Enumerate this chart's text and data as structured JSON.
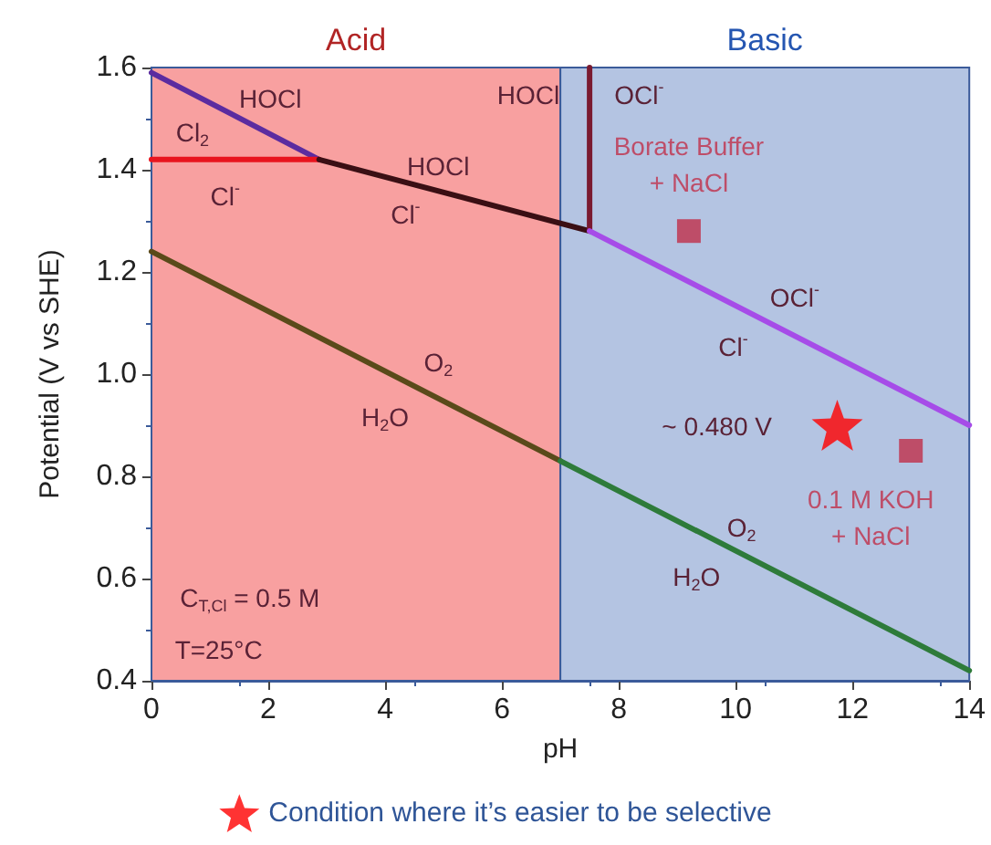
{
  "chart_data": {
    "type": "line",
    "xlabel": "pH",
    "ylabel": "Potential (V vs SHE)",
    "xlim": [
      0,
      14
    ],
    "xticks": [
      0,
      2,
      4,
      6,
      8,
      10,
      12,
      14
    ],
    "ylim": [
      0.4,
      1.6
    ],
    "yticks": [
      {
        "value": 0.4,
        "label": "0.4"
      },
      {
        "value": 0.6,
        "label": "0.6"
      },
      {
        "value": 0.8,
        "label": "0.8"
      },
      {
        "value": 1.0,
        "label": "1.0"
      },
      {
        "value": 1.2,
        "label": "1.2"
      },
      {
        "value": 1.4,
        "label": "1.4"
      },
      {
        "value": 1.6,
        "label": "1.6"
      }
    ],
    "grid": false,
    "legend": "bottom",
    "marker": "none",
    "line_style": "solid",
    "bands": [
      {
        "axis": "x",
        "from": 0,
        "to": 7,
        "label": "Acid",
        "color": "#f8a0a0"
      },
      {
        "axis": "x",
        "from": 7,
        "to": 14,
        "label": "Basic",
        "color": "#b4c4e2"
      }
    ],
    "series": [
      {
        "color": "#5b2ca0",
        "x": [
          0,
          2.87
        ],
        "values": [
          1.59,
          1.42
        ]
      },
      {
        "color": "#e8141e",
        "x": [
          0,
          2.87
        ],
        "values": [
          1.42,
          1.42
        ]
      },
      {
        "color": "#3a0f14",
        "x": [
          2.87,
          7.5
        ],
        "values": [
          1.42,
          1.28
        ]
      },
      {
        "color": "#7a1a30",
        "x": [
          7.5,
          7.5
        ],
        "values": [
          1.28,
          1.6
        ]
      },
      {
        "color": "#a64ce8",
        "x": [
          7.5,
          14
        ],
        "values": [
          1.28,
          0.9
        ]
      },
      {
        "color": "#5a4a1a",
        "x": [
          0,
          7
        ],
        "values": [
          1.24,
          0.83
        ]
      },
      {
        "color": "#2e7b3a",
        "x": [
          7,
          14
        ],
        "values": [
          0.83,
          0.42
        ]
      },
      {
        "type": "scatter",
        "marker": "square",
        "name": "Borate Buffer + NaCl",
        "color": "#c0304a",
        "x": [
          9.2
        ],
        "values": [
          1.28
        ]
      },
      {
        "type": "scatter",
        "marker": "square",
        "name": "0.1 M KOH + NaCl",
        "color": "#c0304a",
        "x": [
          13.0
        ],
        "values": [
          0.85
        ]
      },
      {
        "type": "scatter",
        "marker": "star",
        "name": "Condition where it’s easier to be selective",
        "color": "#ff0000",
        "x": [
          11.74
        ],
        "values": [
          0.9
        ]
      }
    ],
    "annotations": [
      "HOCl",
      "Cl$_{2}$",
      "Cl$^{-}$",
      "HOCl",
      "Cl$^{-}$",
      "O$_{2}$",
      "H$_{2}$O",
      "HOCl",
      "OCl$^{-}$",
      "OCl$^{-}$",
      "Cl$^{-}$",
      "~ 0.480 V",
      "O$_{2}$",
      "H$_{2}$O",
      "C$_{T,Cl}$ = 0.5 M",
      "T=25°C"
    ]
  }
}
